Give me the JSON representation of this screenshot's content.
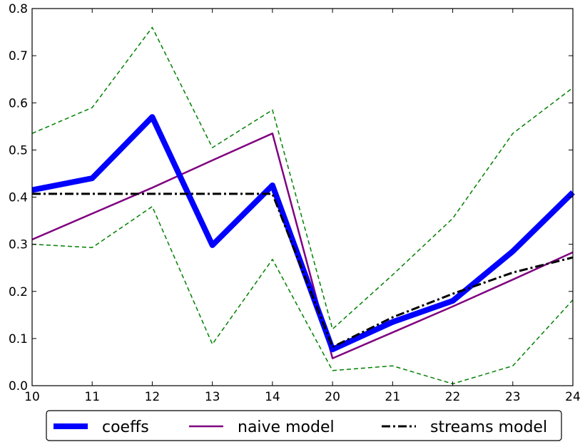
{
  "chart_data": {
    "type": "line",
    "categories": [
      "10",
      "11",
      "12",
      "13",
      "14",
      "20",
      "21",
      "22",
      "23",
      "24"
    ],
    "ylim": [
      0,
      0.8
    ],
    "yticks": [
      "0.0",
      "0.1",
      "0.2",
      "0.3",
      "0.4",
      "0.5",
      "0.6",
      "0.7",
      "0.8"
    ],
    "grid": false,
    "legend_position": "bottom",
    "series": [
      {
        "name": "coeffs",
        "color": "#0000ff",
        "style": "solid-thick",
        "values": [
          0.415,
          0.44,
          0.57,
          0.298,
          0.425,
          0.077,
          0.135,
          0.18,
          0.285,
          0.41
        ]
      },
      {
        "name": "naive model",
        "color": "#800080",
        "style": "solid",
        "values": [
          0.31,
          0.365,
          0.42,
          0.478,
          0.535,
          0.058,
          0.113,
          0.168,
          0.225,
          0.283
        ]
      },
      {
        "name": "streams model",
        "color": "#000000",
        "style": "dashdot",
        "values": [
          0.407,
          0.407,
          0.407,
          0.407,
          0.407,
          0.082,
          0.145,
          0.195,
          0.24,
          0.272
        ]
      },
      {
        "name": "",
        "color": "#008000",
        "style": "dashed",
        "values": [
          0.535,
          0.59,
          0.76,
          0.505,
          0.585,
          0.12,
          0.235,
          0.355,
          0.535,
          0.632
        ]
      },
      {
        "name": "",
        "color": "#008000",
        "style": "dashed",
        "values": [
          0.3,
          0.293,
          0.38,
          0.088,
          0.268,
          0.032,
          0.042,
          0.004,
          0.042,
          0.182
        ]
      }
    ]
  }
}
